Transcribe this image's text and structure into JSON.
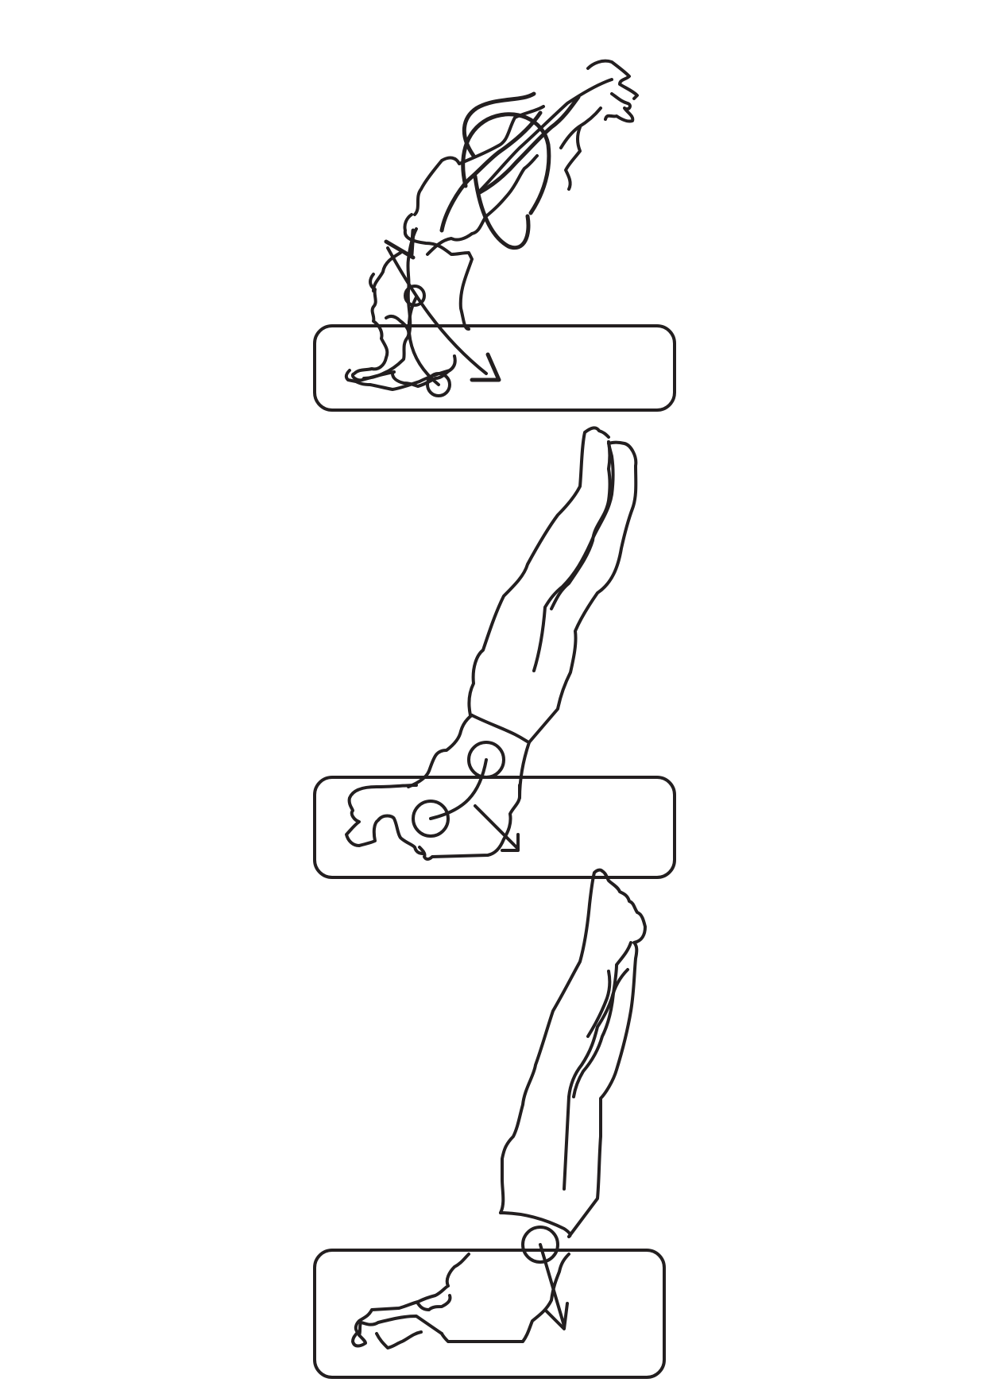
{
  "diagram": {
    "kind": "exercise-sequence",
    "steps": [
      {
        "id": "step-1",
        "phase": "rolling-into-shoulder-stand"
      },
      {
        "id": "step-2",
        "phase": "shoulder-stand-hips-supported"
      },
      {
        "id": "step-3",
        "phase": "candlestick-legs-vertical"
      }
    ]
  },
  "colors": {
    "line": "#231f20",
    "background": "#ffffff"
  },
  "icons": {
    "pivot": "circle-pivot-marker",
    "direction": "arrow-icon",
    "mat": "mat-rectangle"
  }
}
